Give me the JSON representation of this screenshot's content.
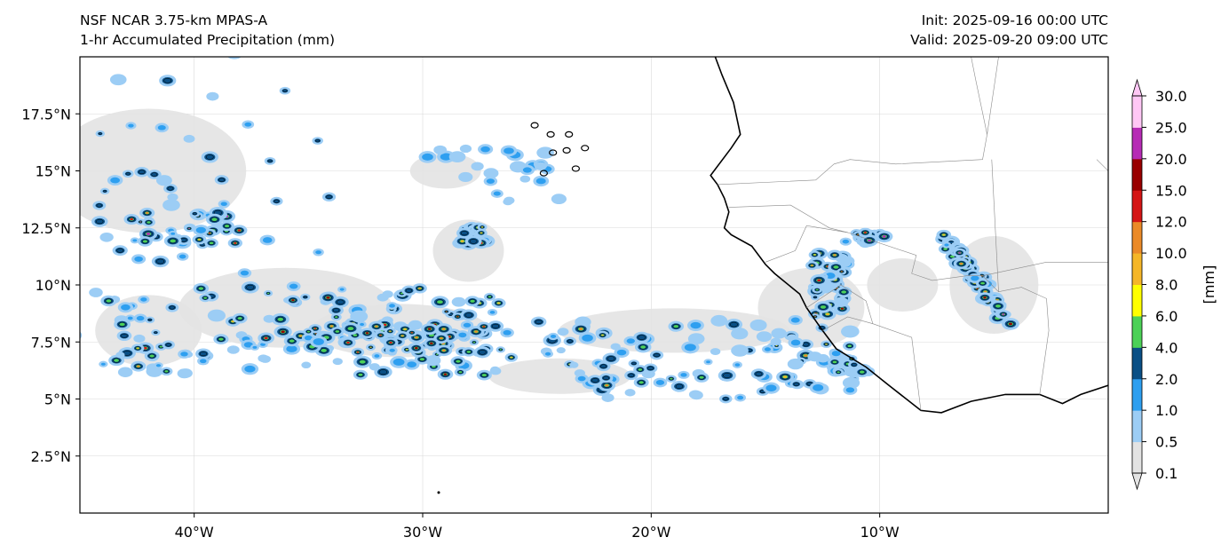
{
  "header": {
    "title": "NSF NCAR 3.75-km MPAS-A",
    "subtitle": "1-hr Accumulated Precipitation (mm)",
    "init": "Init: 2025-09-16 00:00 UTC",
    "valid": "Valid: 2025-09-20 09:00 UTC"
  },
  "map": {
    "extent": {
      "lon": [
        -45,
        0
      ],
      "lat": [
        0,
        20
      ]
    },
    "x_ticks": [
      {
        "lon": -40,
        "label": "40°W"
      },
      {
        "lon": -30,
        "label": "30°W"
      },
      {
        "lon": -20,
        "label": "20°W"
      },
      {
        "lon": -10,
        "label": "10°W"
      }
    ],
    "y_ticks": [
      {
        "lat": 17.5,
        "label": "17.5°N"
      },
      {
        "lat": 15,
        "label": "15°N"
      },
      {
        "lat": 12.5,
        "label": "12.5°N"
      },
      {
        "lat": 10,
        "label": "10°N"
      },
      {
        "lat": 7.5,
        "label": "7.5°N"
      },
      {
        "lat": 5,
        "label": "5°N"
      },
      {
        "lat": 2.5,
        "label": "2.5°N"
      }
    ],
    "gridlines": true
  },
  "colorbar": {
    "unit_label": "[mm]",
    "levels": [
      "0.1",
      "0.5",
      "1.0",
      "2.0",
      "4.0",
      "6.0",
      "8.0",
      "10.0",
      "12.0",
      "15.0",
      "20.0",
      "25.0",
      "30.0"
    ],
    "colors": [
      "#e3e3e3",
      "#9ccdf5",
      "#2e9ff0",
      "#0a4f85",
      "#4cd157",
      "#ffff00",
      "#f5b628",
      "#eb8a28",
      "#d41515",
      "#990000",
      "#b62bb5",
      "#ffc7f5"
    ],
    "extend": "both"
  }
}
